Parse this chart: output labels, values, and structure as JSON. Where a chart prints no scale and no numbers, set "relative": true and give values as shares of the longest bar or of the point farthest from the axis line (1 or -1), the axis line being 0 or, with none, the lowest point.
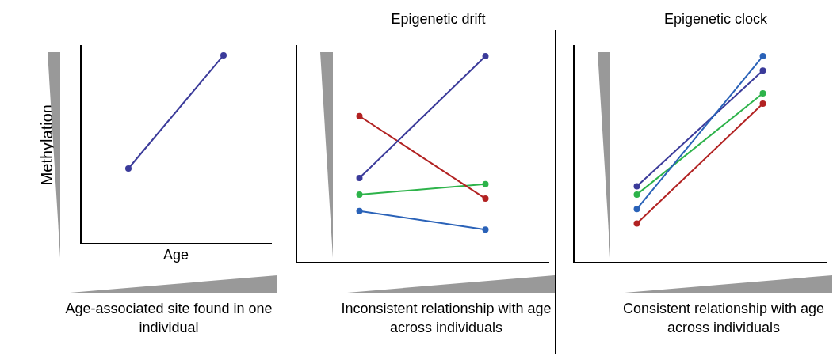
{
  "chart_data": [
    {
      "type": "line",
      "relative": true,
      "ylabel": "Methylation",
      "xlabel": "Age",
      "categories": [
        null,
        null
      ],
      "marker": "circle",
      "legend": false,
      "grid": false,
      "series": [
        {
          "color": "#3b3b9a",
          "values": [
            0.4,
            1
          ]
        }
      ],
      "annotations": [
        "Age-associated site found in one individual"
      ]
    },
    {
      "type": "line",
      "relative": true,
      "title": "Epigenetic drift",
      "categories": [
        null,
        null
      ],
      "marker": "circle",
      "legend": false,
      "grid": false,
      "series": [
        {
          "color": "#3b3b9a",
          "values": [
            0.41,
            1
          ]
        },
        {
          "color": "#b22222",
          "values": [
            0.71,
            0.31
          ]
        },
        {
          "color": "#2db34a",
          "values": [
            0.33,
            0.38
          ]
        },
        {
          "color": "#2a62b8",
          "values": [
            0.25,
            0.16
          ]
        }
      ],
      "annotations": [
        "Inconsistent relationship with age across individuals"
      ]
    },
    {
      "type": "line",
      "relative": true,
      "title": "Epigenetic clock",
      "categories": [
        null,
        null
      ],
      "marker": "circle",
      "legend": false,
      "grid": false,
      "series": [
        {
          "color": "#2a62b8",
          "values": [
            0.26,
            1
          ]
        },
        {
          "color": "#3b3b9a",
          "values": [
            0.37,
            0.93
          ]
        },
        {
          "color": "#2db34a",
          "values": [
            0.33,
            0.82
          ]
        },
        {
          "color": "#b22222",
          "values": [
            0.19,
            0.77
          ]
        }
      ],
      "annotations": [
        "Consistent relationship with age across individuals"
      ]
    }
  ]
}
